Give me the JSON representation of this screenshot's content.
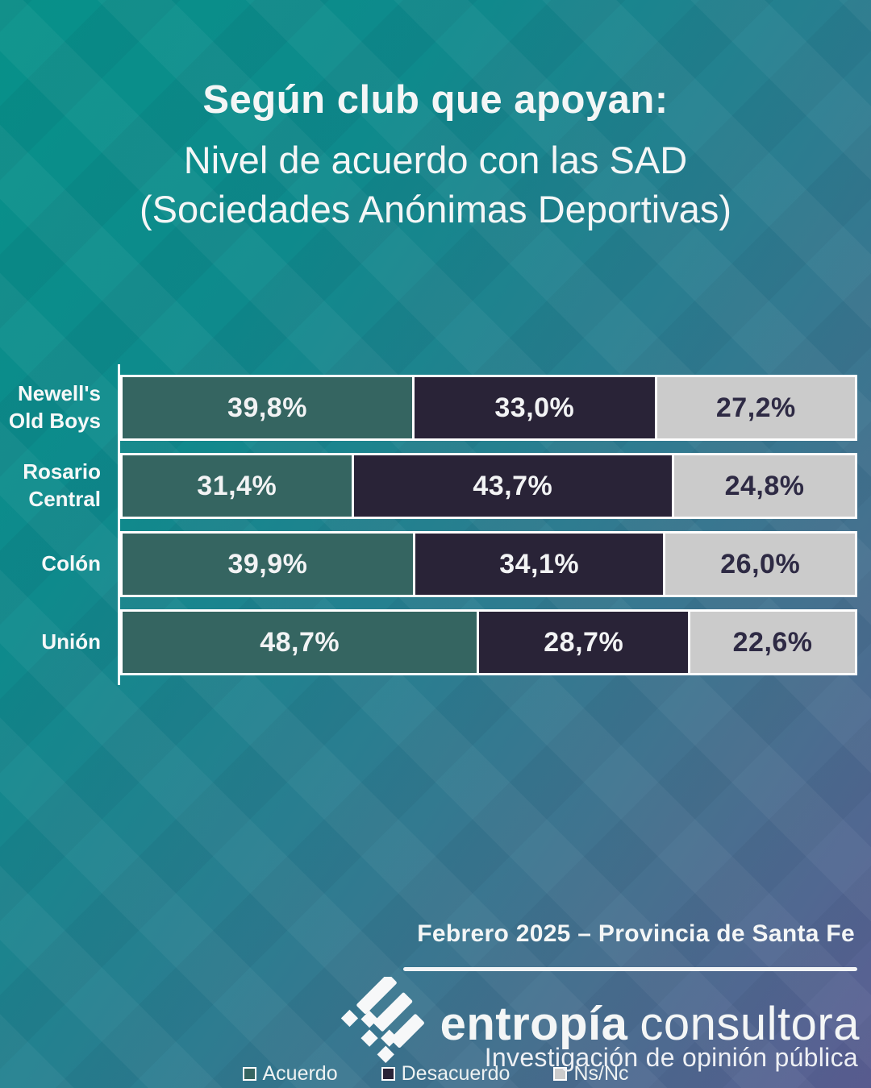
{
  "title": {
    "line1": "Según club que apoyan:",
    "line2": "Nivel de acuerdo con las SAD",
    "line3": "(Sociedades Anónimas Deportivas)"
  },
  "chart_data": {
    "type": "bar",
    "orientation": "horizontal",
    "stacked": true,
    "unit": "%",
    "decimal_separator": ",",
    "grid": false,
    "xlim": [
      0,
      100
    ],
    "legend_position": "bottom",
    "categories": [
      "Newell's Old Boys",
      "Rosario Central",
      "Colón",
      "Unión"
    ],
    "category_label_lines": [
      [
        "Newell's",
        "Old Boys"
      ],
      [
        "Rosario",
        "Central"
      ],
      [
        "Colón"
      ],
      [
        "Unión"
      ]
    ],
    "series": [
      {
        "name": "Acuerdo",
        "color": "#356561",
        "text_color": "#f2f3f4",
        "values": [
          39.8,
          31.4,
          39.9,
          48.7
        ],
        "labels": [
          "39,8%",
          "31,4%",
          "39,9%",
          "48,7%"
        ]
      },
      {
        "name": "Desacuerdo",
        "color": "#292337",
        "text_color": "#f2f3f4",
        "values": [
          33.0,
          43.7,
          34.1,
          28.7
        ],
        "labels": [
          "33,0%",
          "43,7%",
          "34,1%",
          "28,7%"
        ]
      },
      {
        "name": "Ns/Nc",
        "color": "#cbcbcb",
        "text_color": "#2e2a44",
        "values": [
          27.2,
          24.8,
          26.0,
          22.6
        ],
        "labels": [
          "27,2%",
          "24,8%",
          "26,0%",
          "22,6%"
        ]
      }
    ]
  },
  "footer": {
    "date_line": "Febrero 2025 – Provincia de Santa Fe",
    "brand": {
      "bold": "entropía",
      "light": "consultora"
    },
    "tagline": "Investigación de opinión pública"
  },
  "colors": {
    "bg_top_left": "#079189",
    "bg_top_right": "#2f7990",
    "bg_bottom_right": "#5c5e93",
    "bar_border": "#ffffff",
    "title_text": "#f4f6f6"
  },
  "icons": {
    "brand_mark": "entropia-diamonds-icon"
  }
}
